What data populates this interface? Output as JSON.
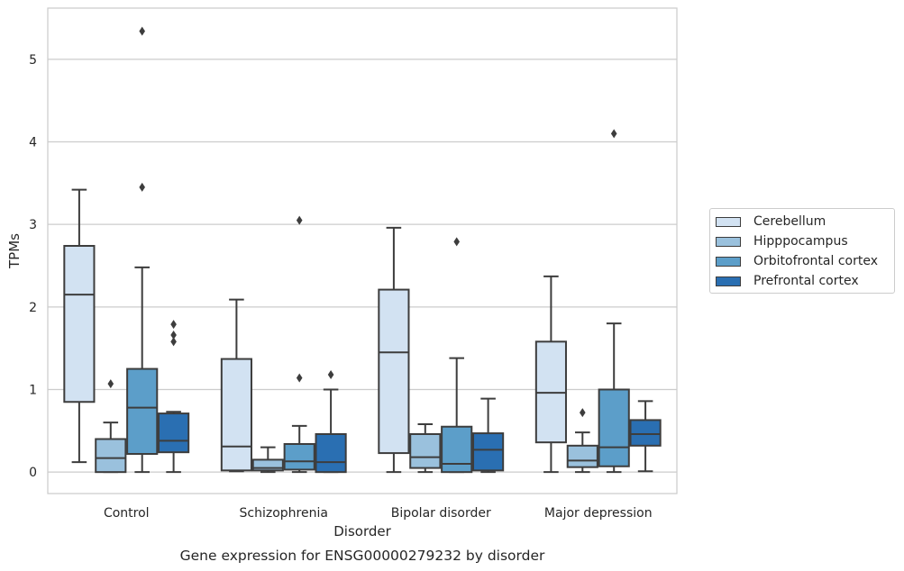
{
  "chart_data": {
    "type": "box",
    "title": "Gene expression for ENSG00000279232 by disorder",
    "xlabel": "Disorder",
    "ylabel": "TPMs",
    "ylim": [
      -0.26,
      5.62
    ],
    "yticks": [
      0,
      1,
      2,
      3,
      4,
      5
    ],
    "grid": "horizontal",
    "legend_position": "right",
    "categories": [
      "Control",
      "Schizophrenia",
      "Bipolar disorder",
      "Major depression"
    ],
    "series": [
      {
        "name": "Cerebellum",
        "color": "#d2e2f2",
        "boxes": [
          {
            "whisker_low": 0.12,
            "q1": 0.85,
            "median": 2.15,
            "q3": 2.74,
            "whisker_high": 3.42,
            "outliers": []
          },
          {
            "whisker_low": 0.01,
            "q1": 0.02,
            "median": 0.31,
            "q3": 1.37,
            "whisker_high": 2.09,
            "outliers": []
          },
          {
            "whisker_low": 0.0,
            "q1": 0.23,
            "median": 1.45,
            "q3": 2.21,
            "whisker_high": 2.96,
            "outliers": []
          },
          {
            "whisker_low": 0.0,
            "q1": 0.36,
            "median": 0.96,
            "q3": 1.58,
            "whisker_high": 2.37,
            "outliers": []
          }
        ]
      },
      {
        "name": "Hipppocampus",
        "color": "#9ac1dd",
        "boxes": [
          {
            "whisker_low": 0.0,
            "q1": 0.0,
            "median": 0.17,
            "q3": 0.4,
            "whisker_high": 0.6,
            "outliers": [
              1.07
            ]
          },
          {
            "whisker_low": 0.0,
            "q1": 0.02,
            "median": 0.05,
            "q3": 0.15,
            "whisker_high": 0.3,
            "outliers": []
          },
          {
            "whisker_low": 0.0,
            "q1": 0.05,
            "median": 0.18,
            "q3": 0.46,
            "whisker_high": 0.58,
            "outliers": []
          },
          {
            "whisker_low": 0.0,
            "q1": 0.06,
            "median": 0.14,
            "q3": 0.32,
            "whisker_high": 0.48,
            "outliers": [
              0.72
            ]
          }
        ]
      },
      {
        "name": "Orbitofrontal cortex",
        "color": "#5c9ec9",
        "boxes": [
          {
            "whisker_low": 0.0,
            "q1": 0.22,
            "median": 0.78,
            "q3": 1.25,
            "whisker_high": 2.48,
            "outliers": [
              3.45,
              5.34
            ]
          },
          {
            "whisker_low": 0.0,
            "q1": 0.03,
            "median": 0.13,
            "q3": 0.34,
            "whisker_high": 0.56,
            "outliers": [
              1.14,
              3.05
            ]
          },
          {
            "whisker_low": 0.0,
            "q1": 0.0,
            "median": 0.1,
            "q3": 0.55,
            "whisker_high": 1.38,
            "outliers": [
              2.79
            ]
          },
          {
            "whisker_low": 0.0,
            "q1": 0.07,
            "median": 0.3,
            "q3": 1.0,
            "whisker_high": 1.8,
            "outliers": [
              4.1
            ]
          }
        ]
      },
      {
        "name": "Prefrontal cortex",
        "color": "#2a6fb2",
        "boxes": [
          {
            "whisker_low": 0.0,
            "q1": 0.24,
            "median": 0.38,
            "q3": 0.71,
            "whisker_high": 0.73,
            "outliers": [
              1.58,
              1.66,
              1.79
            ]
          },
          {
            "whisker_low": 0.0,
            "q1": 0.0,
            "median": 0.12,
            "q3": 0.46,
            "whisker_high": 1.0,
            "outliers": [
              1.18
            ]
          },
          {
            "whisker_low": 0.0,
            "q1": 0.02,
            "median": 0.27,
            "q3": 0.47,
            "whisker_high": 0.89,
            "outliers": []
          },
          {
            "whisker_low": 0.01,
            "q1": 0.32,
            "median": 0.46,
            "q3": 0.63,
            "whisker_high": 0.86,
            "outliers": []
          }
        ]
      }
    ]
  }
}
